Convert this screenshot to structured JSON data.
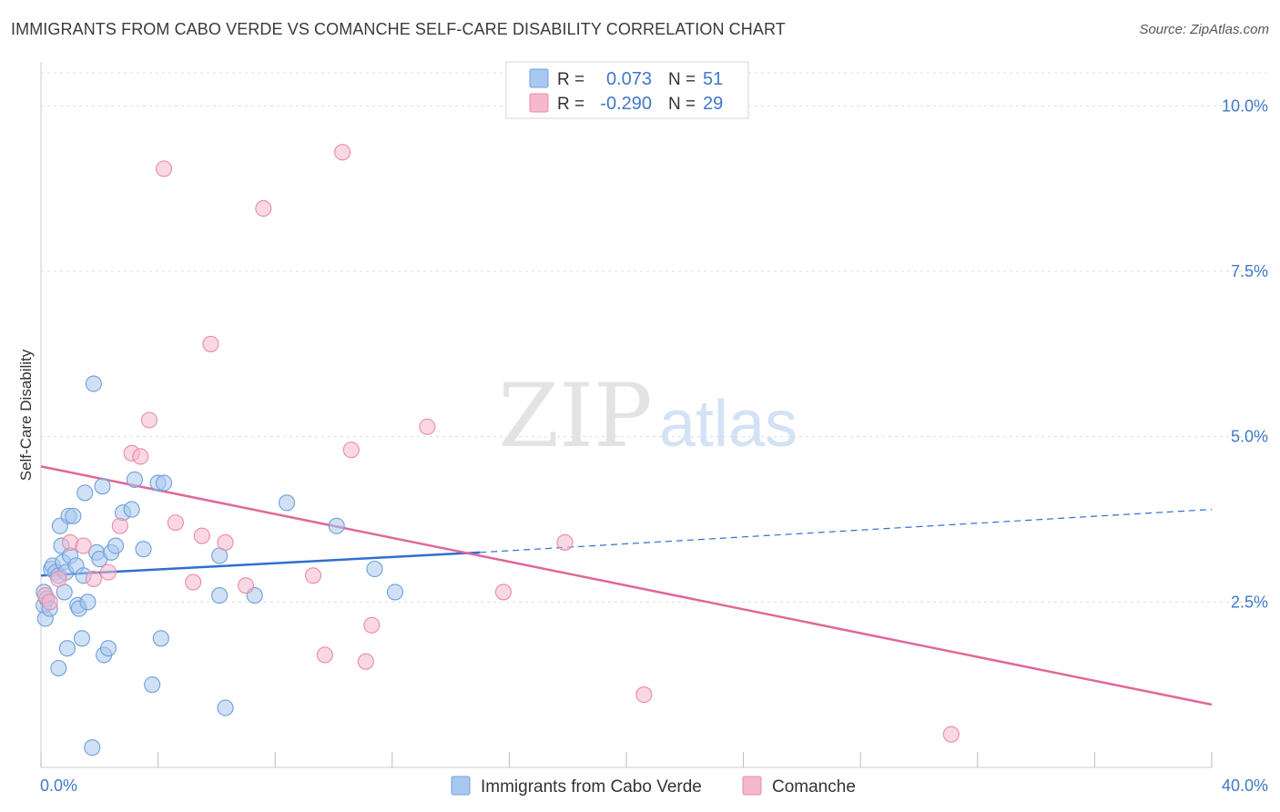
{
  "title": "IMMIGRANTS FROM CABO VERDE VS COMANCHE SELF-CARE DISABILITY CORRELATION CHART",
  "source": "Source: ZipAtlas.com",
  "watermark": {
    "zip": "ZIP",
    "atlas": "atlas"
  },
  "colors": {
    "blue_fill": "#a9c8ef",
    "blue_stroke": "#6f9fdc",
    "blue_line": "#2f6fce",
    "pink_fill": "#f6b8cc",
    "pink_stroke": "#ec8aa8",
    "pink_line": "#e0679a",
    "axis_label": "#3f78c8",
    "grid": "#dddddd"
  },
  "legend": {
    "rows": [
      {
        "r_label": "R =",
        "r_value": "0.073",
        "n_label": "N =",
        "n_value": "51",
        "series": "blue"
      },
      {
        "r_label": "R =",
        "r_value": "-0.290",
        "n_label": "N =",
        "n_value": "29",
        "series": "pink"
      }
    ]
  },
  "chart_data": {
    "type": "scatter",
    "title": "IMMIGRANTS FROM CABO VERDE VS COMANCHE SELF-CARE DISABILITY CORRELATION CHART",
    "xlabel": "",
    "ylabel": "Self-Care Disability",
    "xlim": [
      0,
      40
    ],
    "ylim": [
      0,
      10.5
    ],
    "x_tick_labels": [
      "0.0%",
      "40.0%"
    ],
    "y_ticks": [
      2.5,
      5.0,
      7.5,
      10.0
    ],
    "y_tick_labels": [
      "2.5%",
      "5.0%",
      "7.5%",
      "10.0%"
    ],
    "grid": "horizontal dashed",
    "legend_position": "bottom",
    "series": [
      {
        "name": "Immigrants from Cabo Verde",
        "color": "blue",
        "r": 0.073,
        "n": 51,
        "trend": {
          "x0": 0,
          "y0": 2.9,
          "x1": 15,
          "y1": 3.25,
          "dash_to_x": 40,
          "dash_to_y": 3.9
        },
        "points": [
          [
            0.1,
            2.65
          ],
          [
            0.1,
            2.45
          ],
          [
            0.15,
            2.25
          ],
          [
            0.2,
            2.55
          ],
          [
            0.3,
            2.4
          ],
          [
            0.35,
            3.0
          ],
          [
            0.4,
            3.05
          ],
          [
            0.5,
            2.95
          ],
          [
            0.6,
            1.5
          ],
          [
            0.6,
            2.9
          ],
          [
            0.65,
            3.65
          ],
          [
            0.7,
            3.35
          ],
          [
            0.75,
            3.1
          ],
          [
            0.8,
            2.65
          ],
          [
            0.85,
            2.95
          ],
          [
            0.9,
            1.8
          ],
          [
            0.95,
            3.8
          ],
          [
            1.0,
            3.2
          ],
          [
            1.1,
            3.8
          ],
          [
            1.2,
            3.05
          ],
          [
            1.25,
            2.45
          ],
          [
            1.3,
            2.4
          ],
          [
            1.4,
            1.95
          ],
          [
            1.45,
            2.9
          ],
          [
            1.5,
            4.15
          ],
          [
            1.6,
            2.5
          ],
          [
            1.8,
            5.8
          ],
          [
            1.9,
            3.25
          ],
          [
            2.0,
            3.15
          ],
          [
            2.1,
            4.25
          ],
          [
            2.15,
            1.7
          ],
          [
            2.3,
            1.8
          ],
          [
            2.4,
            3.25
          ],
          [
            2.55,
            3.35
          ],
          [
            2.8,
            3.85
          ],
          [
            3.1,
            3.9
          ],
          [
            3.2,
            4.35
          ],
          [
            3.5,
            3.3
          ],
          [
            3.8,
            1.25
          ],
          [
            4.0,
            4.3
          ],
          [
            4.1,
            1.95
          ],
          [
            4.2,
            4.3
          ],
          [
            6.1,
            2.6
          ],
          [
            6.1,
            3.2
          ],
          [
            6.3,
            0.9
          ],
          [
            7.3,
            2.6
          ],
          [
            8.4,
            4.0
          ],
          [
            10.1,
            3.65
          ],
          [
            11.4,
            3.0
          ],
          [
            12.1,
            2.65
          ],
          [
            1.75,
            0.3
          ]
        ]
      },
      {
        "name": "Comanche",
        "color": "pink",
        "r": -0.29,
        "n": 29,
        "trend": {
          "x0": 0,
          "y0": 4.55,
          "x1": 40,
          "y1": 0.95
        },
        "points": [
          [
            0.15,
            2.6
          ],
          [
            0.3,
            2.5
          ],
          [
            0.6,
            2.85
          ],
          [
            1.0,
            3.4
          ],
          [
            1.45,
            3.35
          ],
          [
            1.8,
            2.85
          ],
          [
            2.3,
            2.95
          ],
          [
            2.7,
            3.65
          ],
          [
            3.1,
            4.75
          ],
          [
            3.4,
            4.7
          ],
          [
            3.7,
            5.25
          ],
          [
            4.2,
            9.05
          ],
          [
            4.6,
            3.7
          ],
          [
            5.2,
            2.8
          ],
          [
            5.5,
            3.5
          ],
          [
            5.8,
            6.4
          ],
          [
            6.3,
            3.4
          ],
          [
            7.0,
            2.75
          ],
          [
            7.6,
            8.45
          ],
          [
            9.3,
            2.9
          ],
          [
            9.7,
            1.7
          ],
          [
            10.3,
            9.3
          ],
          [
            10.6,
            4.8
          ],
          [
            11.1,
            1.6
          ],
          [
            11.3,
            2.15
          ],
          [
            13.2,
            5.15
          ],
          [
            15.8,
            2.65
          ],
          [
            17.9,
            3.4
          ],
          [
            20.6,
            1.1
          ]
        ]
      },
      {
        "name": "Comanche (outlier)",
        "color": "pink",
        "points": [
          [
            31.1,
            0.5
          ]
        ]
      }
    ]
  },
  "bottom_legend": {
    "items": [
      {
        "label": "Immigrants from Cabo Verde",
        "series": "blue"
      },
      {
        "label": "Comanche",
        "series": "pink"
      }
    ]
  }
}
